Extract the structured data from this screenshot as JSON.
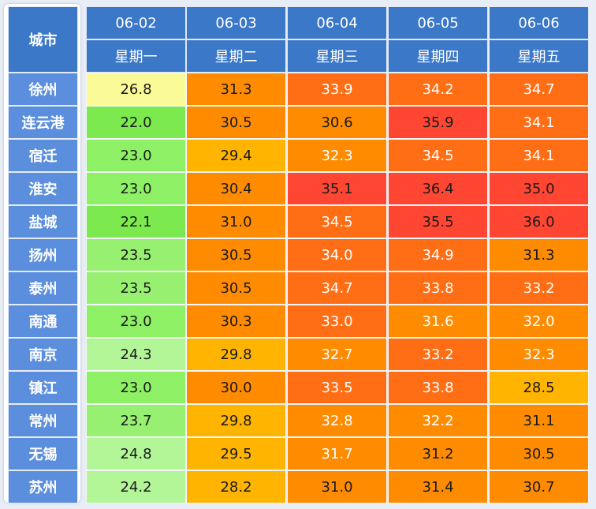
{
  "table": {
    "corner_label": "城市",
    "dates": [
      "06-02",
      "06-03",
      "06-04",
      "06-05",
      "06-06"
    ],
    "weekdays": [
      "星期一",
      "星期二",
      "星期三",
      "星期四",
      "星期五"
    ]
  },
  "chart_data": {
    "type": "heatmap",
    "columns": [
      "06-02",
      "06-03",
      "06-04",
      "06-05",
      "06-06"
    ],
    "rows": [
      "徐州",
      "连云港",
      "宿迁",
      "淮安",
      "盐城",
      "扬州",
      "泰州",
      "南通",
      "南京",
      "镇江",
      "常州",
      "无锡",
      "苏州"
    ],
    "values": [
      [
        "26.8",
        "31.3",
        "33.9",
        "34.2",
        "34.7"
      ],
      [
        "22.0",
        "30.5",
        "30.6",
        "35.9",
        "34.1"
      ],
      [
        "23.0",
        "29.4",
        "32.3",
        "34.5",
        "34.1"
      ],
      [
        "23.0",
        "30.4",
        "35.1",
        "36.4",
        "35.0"
      ],
      [
        "22.1",
        "31.0",
        "34.5",
        "35.5",
        "36.0"
      ],
      [
        "23.5",
        "30.5",
        "34.0",
        "34.9",
        "31.3"
      ],
      [
        "23.5",
        "30.5",
        "34.7",
        "33.8",
        "33.2"
      ],
      [
        "23.0",
        "30.3",
        "33.0",
        "31.6",
        "32.0"
      ],
      [
        "24.3",
        "29.8",
        "32.7",
        "33.2",
        "32.3"
      ],
      [
        "23.0",
        "30.0",
        "33.5",
        "33.8",
        "28.5"
      ],
      [
        "23.7",
        "29.8",
        "32.8",
        "32.2",
        "31.1"
      ],
      [
        "24.8",
        "29.5",
        "31.7",
        "31.2",
        "30.5"
      ],
      [
        "24.2",
        "28.2",
        "31.0",
        "31.4",
        "30.7"
      ]
    ],
    "colors": {
      "header_bg": "#3c78c8",
      "city_bg": "#5b8edc",
      "scale": [
        "#a8f08c",
        "#88ec5c",
        "#fafa96",
        "#ffb400",
        "#ff8c00",
        "#ff6e14",
        "#ff4632"
      ]
    }
  }
}
